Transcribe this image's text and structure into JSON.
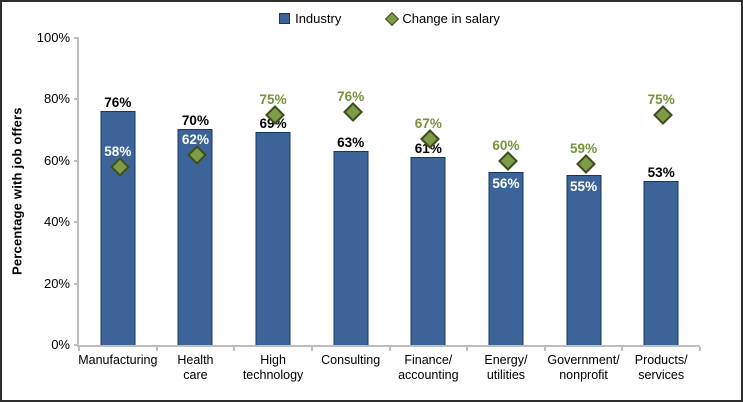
{
  "chart_data": {
    "type": "bar",
    "title": "",
    "xlabel": "",
    "ylabel": "Percentage with job offers",
    "ylim": [
      0,
      100
    ],
    "yticks": [
      0,
      20,
      40,
      60,
      80,
      100
    ],
    "ytick_suffix": "%",
    "grid": false,
    "legend_position": "top-center",
    "categories": [
      "Manufacturing",
      "Health care",
      "High technology",
      "Consulting",
      "Finance/accounting",
      "Energy/utilities",
      "Government/nonprofit",
      "Products/services"
    ],
    "category_label_lines": [
      [
        "Manufacturing"
      ],
      [
        "Health",
        "care"
      ],
      [
        "High",
        "technology"
      ],
      [
        "Consulting"
      ],
      [
        "Finance/",
        "accounting"
      ],
      [
        "Energy/",
        "utilities"
      ],
      [
        "Government/",
        "nonprofit"
      ],
      [
        "Products/",
        "services"
      ]
    ],
    "series": [
      {
        "name": "Industry",
        "type": "bar",
        "marker": "square",
        "color": "#3D6499",
        "border_color": "#17375E",
        "values": [
          76,
          70,
          69,
          63,
          61,
          56,
          55,
          53
        ],
        "label_placements": [
          "above",
          "above",
          "above",
          "above",
          "above",
          "inside",
          "inside",
          "above"
        ]
      },
      {
        "name": "Change in salary",
        "type": "scatter",
        "marker": "diamond",
        "color": "#7E9B48",
        "border_color": "#3F4A1F",
        "values": [
          58,
          62,
          75,
          76,
          67,
          60,
          59,
          75
        ],
        "label_placements": [
          "inside",
          "inside",
          "above",
          "above",
          "above",
          "above",
          "above",
          "above"
        ]
      }
    ],
    "label_colors": {
      "above_bar": "#000000",
      "inside_bar": "#FFFFFF",
      "above_marker": "#77933C"
    },
    "axis_color": "#BEBEBE"
  }
}
